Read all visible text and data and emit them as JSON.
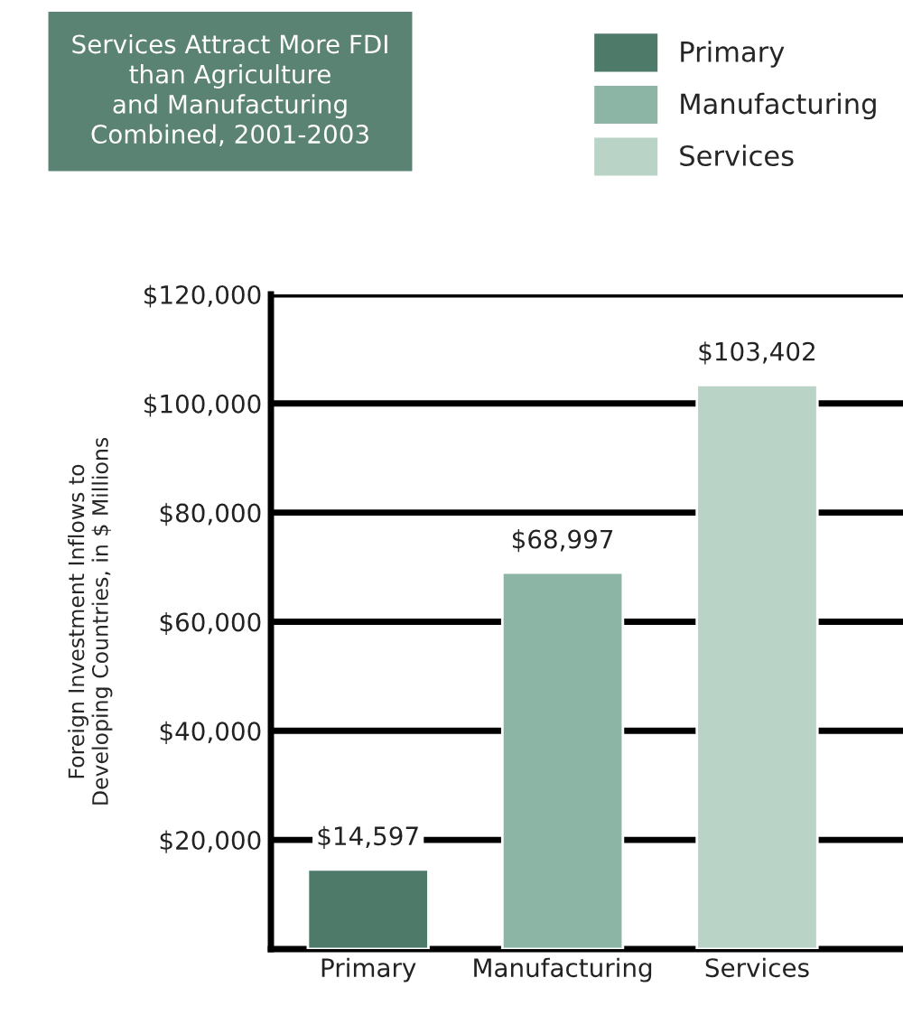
{
  "chart_data": {
    "type": "bar",
    "title": "Services Attract More FDI\nthan Agriculture\nand Manufacturing\nCombined, 2001-2003",
    "ylabel": "Foreign Investment Inflows to\nDeveloping Countries, in $ Millions",
    "categories": [
      "Primary",
      "Manufacturing",
      "Services"
    ],
    "series": [
      {
        "name": "Primary",
        "color": "#4e7a6a",
        "values": [
          14597,
          null,
          null
        ]
      },
      {
        "name": "Manufacturing",
        "color": "#8db5a5",
        "values": [
          null,
          68997,
          null
        ]
      },
      {
        "name": "Services",
        "color": "#b9d3c7",
        "values": [
          null,
          null,
          103402
        ]
      }
    ],
    "value_labels": [
      "$14,597",
      "$68,997",
      "$103,402"
    ],
    "ylim": [
      0,
      120000
    ],
    "yticks": [
      {
        "value": 20000,
        "label": "$20,000"
      },
      {
        "value": 40000,
        "label": "$40,000"
      },
      {
        "value": 60000,
        "label": "$60,000"
      },
      {
        "value": 80000,
        "label": "$80,000"
      },
      {
        "value": 100000,
        "label": "$100,000"
      },
      {
        "value": 120000,
        "label": "$120,000"
      }
    ],
    "grid": "y",
    "legend": "top right"
  }
}
